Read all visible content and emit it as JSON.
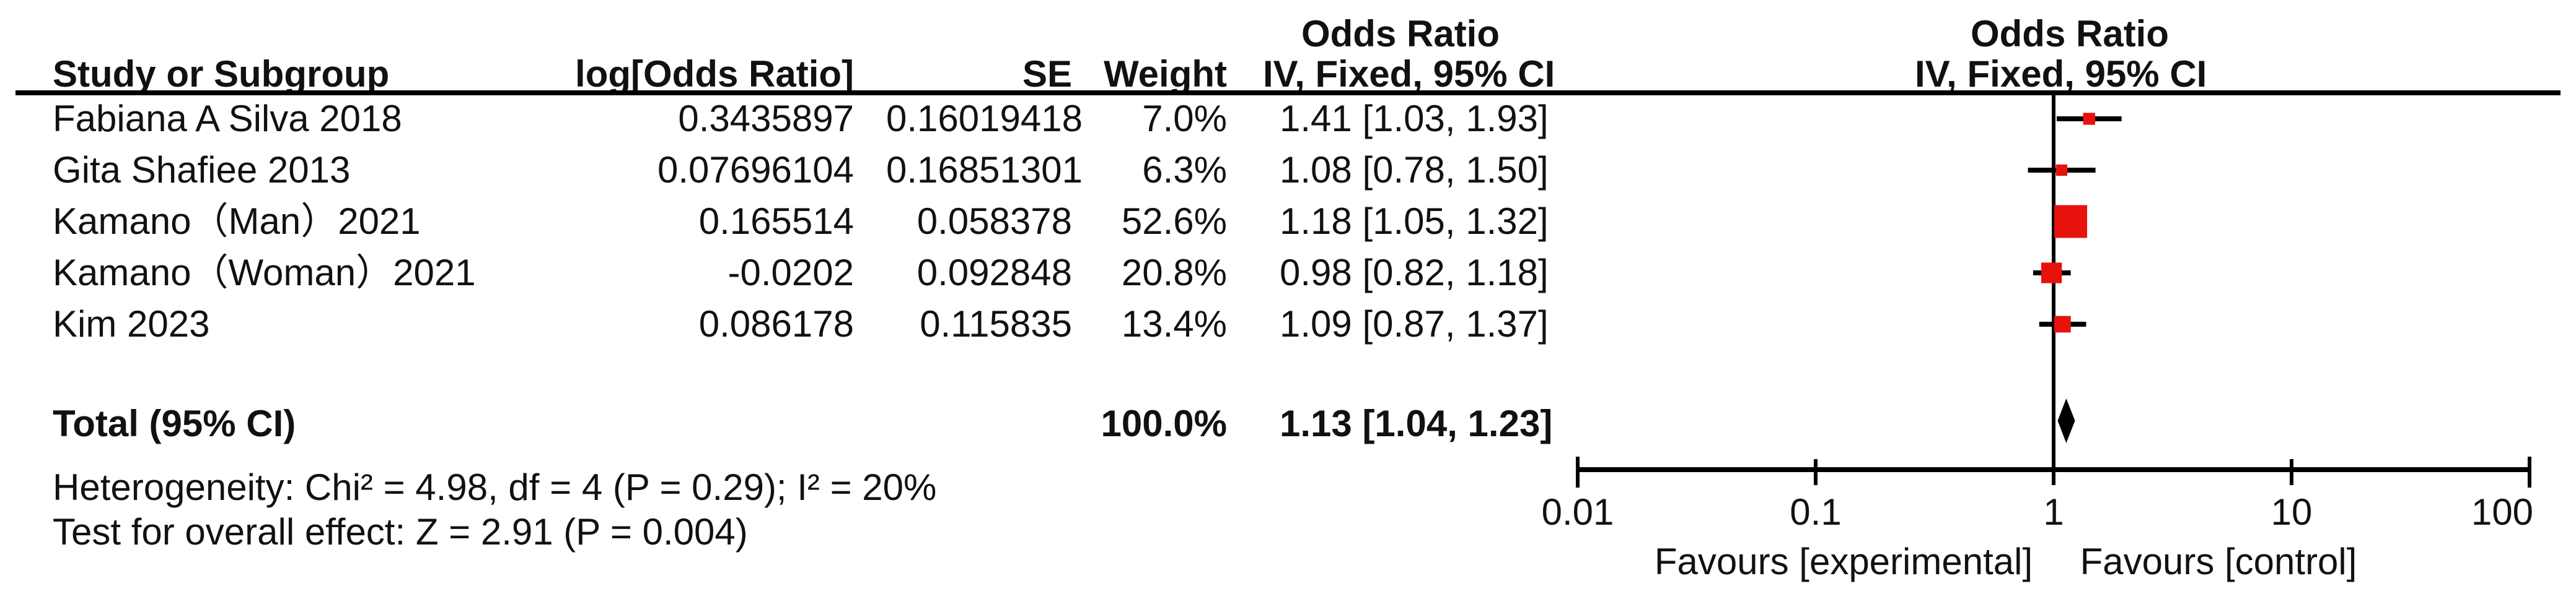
{
  "header": {
    "or_title_table": "Odds Ratio",
    "or_title_plot": "Odds Ratio",
    "col_study": "Study or Subgroup",
    "col_log_or": "log[Odds Ratio]",
    "col_se": "SE",
    "col_weight": "Weight",
    "col_ci_table": "IV, Fixed, 95% CI",
    "col_ci_plot": "IV, Fixed, 95% CI"
  },
  "table": {
    "rows": [
      {
        "study": "Fabiana A Silva 2018",
        "log_or": "0.3435897",
        "se": "0.16019418",
        "weight": "7.0%",
        "ci": "1.41 [1.03, 1.93]"
      },
      {
        "study": "Gita Shafiee 2013",
        "log_or": "0.07696104",
        "se": "0.16851301",
        "weight": "6.3%",
        "ci": "1.08 [0.78, 1.50]"
      },
      {
        "study": "Kamano（Man）2021",
        "log_or": "0.165514",
        "se": "0.058378",
        "weight": "52.6%",
        "ci": "1.18 [1.05, 1.32]"
      },
      {
        "study": "Kamano（Woman）2021",
        "log_or": "-0.0202",
        "se": "0.092848",
        "weight": "20.8%",
        "ci": "0.98 [0.82, 1.18]"
      },
      {
        "study": "Kim 2023",
        "log_or": "0.086178",
        "se": "0.115835",
        "weight": "13.4%",
        "ci": "1.09 [0.87, 1.37]"
      }
    ],
    "total": {
      "label": "Total (95% CI)",
      "weight": "100.0%",
      "ci": "1.13 [1.04, 1.23]"
    }
  },
  "footer": {
    "heterogeneity": "Heterogeneity: Chi² = 4.98, df = 4 (P = 0.29); I² = 20%",
    "overall_effect": "Test for overall effect: Z = 2.91 (P = 0.004)"
  },
  "axis": {
    "tick_labels": [
      "0.01",
      "0.1",
      "1",
      "10",
      "100"
    ],
    "favours_left": "Favours [experimental]",
    "favours_right": "Favours [control]"
  },
  "chart_data": {
    "type": "forest",
    "title": "Odds Ratio",
    "model": "IV, Fixed, 95% CI",
    "x_scale": "log10",
    "x_ticks": [
      0.01,
      0.1,
      1,
      10,
      100
    ],
    "xlim": [
      0.01,
      100
    ],
    "null_line": 1,
    "marker_color": "#e8120c",
    "ci_color": "#000000",
    "diamond_color": "#000000",
    "studies": [
      {
        "name": "Fabiana A Silva 2018",
        "log_or": 0.3435897,
        "se": 0.16019418,
        "weight_pct": 7.0,
        "or": 1.41,
        "ci_low": 1.03,
        "ci_high": 1.93
      },
      {
        "name": "Gita Shafiee 2013",
        "log_or": 0.07696104,
        "se": 0.16851301,
        "weight_pct": 6.3,
        "or": 1.08,
        "ci_low": 0.78,
        "ci_high": 1.5
      },
      {
        "name": "Kamano（Man）2021",
        "log_or": 0.165514,
        "se": 0.058378,
        "weight_pct": 52.6,
        "or": 1.18,
        "ci_low": 1.05,
        "ci_high": 1.32
      },
      {
        "name": "Kamano（Woman）2021",
        "log_or": -0.0202,
        "se": 0.092848,
        "weight_pct": 20.8,
        "or": 0.98,
        "ci_low": 0.82,
        "ci_high": 1.18
      },
      {
        "name": "Kim 2023",
        "log_or": 0.086178,
        "se": 0.115835,
        "weight_pct": 13.4,
        "or": 1.09,
        "ci_low": 0.87,
        "ci_high": 1.37
      }
    ],
    "total": {
      "name": "Total (95% CI)",
      "or": 1.13,
      "ci_low": 1.04,
      "ci_high": 1.23,
      "weight_pct": 100.0
    },
    "heterogeneity": {
      "chi2": 4.98,
      "df": 4,
      "p": 0.29,
      "i2_pct": 20
    },
    "overall_effect": {
      "z": 2.91,
      "p": 0.004
    }
  }
}
